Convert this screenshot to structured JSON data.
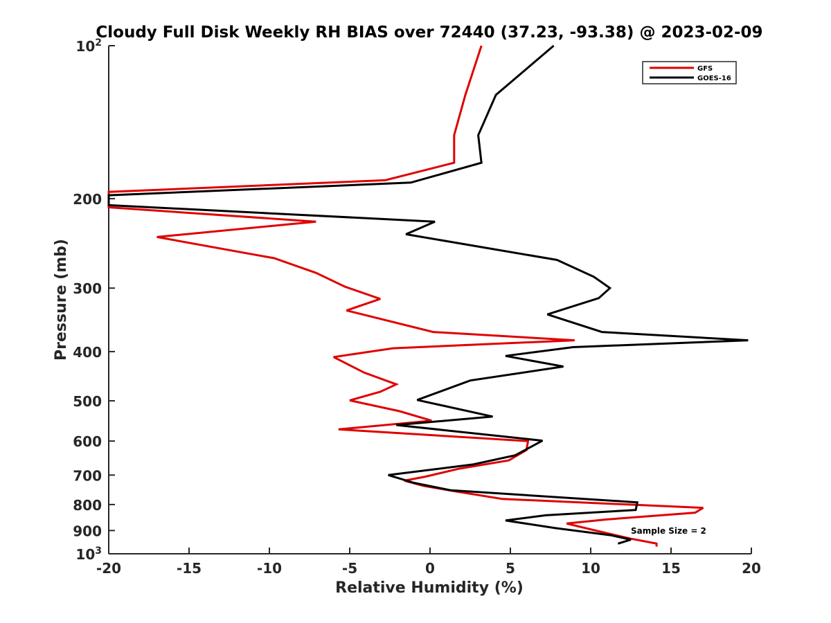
{
  "chart_data": {
    "type": "line",
    "title": "Cloudy Full Disk Weekly RH BIAS over 72440 (37.23, -93.38) @ 2023-02-09",
    "xlabel": "Relative Humidity (%)",
    "ylabel": "Pressure (mb)",
    "xlim": [
      -20,
      20
    ],
    "ylim": [
      100,
      1000
    ],
    "y_scale": "log",
    "y_reversed": true,
    "x_ticks": [
      -20,
      -15,
      -10,
      -5,
      0,
      5,
      10,
      15,
      20
    ],
    "x_tick_labels": [
      "-20",
      "-15",
      "-10",
      "-5",
      "0",
      "5",
      "10",
      "15",
      "20"
    ],
    "y_ticks": [
      100,
      200,
      300,
      400,
      500,
      600,
      700,
      800,
      900,
      1000
    ],
    "y_tick_labels": [
      {
        "base": "10",
        "exp": "2"
      },
      {
        "base": "200",
        "exp": ""
      },
      {
        "base": "300",
        "exp": ""
      },
      {
        "base": "400",
        "exp": ""
      },
      {
        "base": "500",
        "exp": ""
      },
      {
        "base": "600",
        "exp": ""
      },
      {
        "base": "700",
        "exp": ""
      },
      {
        "base": "800",
        "exp": ""
      },
      {
        "base": "900",
        "exp": ""
      },
      {
        "base": "10",
        "exp": "3"
      }
    ],
    "grid": false,
    "legend_position": "top-right",
    "annotation": "Sample Size = 2",
    "series": [
      {
        "name": "GFS",
        "color": "#e00000",
        "points": [
          [
            3.2,
            100
          ],
          [
            2.2,
            125
          ],
          [
            1.5,
            150
          ],
          [
            1.5,
            170
          ],
          [
            -2.8,
            184
          ],
          [
            -20,
            194
          ],
          [
            -20,
            208
          ],
          [
            -7.1,
            222
          ],
          [
            -17,
            238
          ],
          [
            -9.7,
            262
          ],
          [
            -7.1,
            280
          ],
          [
            -5.3,
            298
          ],
          [
            -3.1,
            315
          ],
          [
            -5.2,
            332
          ],
          [
            0.2,
            366
          ],
          [
            9.0,
            380
          ],
          [
            -2.3,
            394
          ],
          [
            -6.0,
            410
          ],
          [
            -4.1,
            440
          ],
          [
            -2.1,
            464
          ],
          [
            -3.1,
            480
          ],
          [
            -5.0,
            499
          ],
          [
            -1.9,
            524
          ],
          [
            0.1,
            547
          ],
          [
            -5.7,
            569
          ],
          [
            6.1,
            600
          ],
          [
            6.0,
            625
          ],
          [
            4.9,
            655
          ],
          [
            1.8,
            680
          ],
          [
            -0.3,
            705
          ],
          [
            -1.6,
            718
          ],
          [
            -0.4,
            735
          ],
          [
            1.4,
            752
          ],
          [
            4.5,
            780
          ],
          [
            17.0,
            812
          ],
          [
            16.5,
            830
          ],
          [
            11.0,
            856
          ],
          [
            8.5,
            872
          ],
          [
            10.5,
            903
          ],
          [
            12.5,
            934
          ],
          [
            14.1,
            955
          ],
          [
            14.1,
            968
          ]
        ]
      },
      {
        "name": "GOES-16",
        "color": "#000000",
        "points": [
          [
            7.7,
            100
          ],
          [
            4.1,
            125
          ],
          [
            3.0,
            150
          ],
          [
            3.2,
            170
          ],
          [
            -1.2,
            186
          ],
          [
            -20,
            197
          ],
          [
            -20,
            206
          ],
          [
            0.3,
            222
          ],
          [
            -1.5,
            235
          ],
          [
            7.9,
            264
          ],
          [
            10.2,
            285
          ],
          [
            11.2,
            300
          ],
          [
            10.5,
            314
          ],
          [
            7.3,
            338
          ],
          [
            10.7,
            366
          ],
          [
            19.8,
            380
          ],
          [
            8.9,
            392
          ],
          [
            4.7,
            408
          ],
          [
            8.3,
            428
          ],
          [
            2.5,
            456
          ],
          [
            -0.8,
            498
          ],
          [
            3.9,
            537
          ],
          [
            -2.1,
            558
          ],
          [
            7.0,
            599
          ],
          [
            5.3,
            640
          ],
          [
            2.7,
            667
          ],
          [
            -2.6,
            700
          ],
          [
            -1.0,
            725
          ],
          [
            1.3,
            750
          ],
          [
            12.9,
            792
          ],
          [
            12.8,
            820
          ],
          [
            7.2,
            840
          ],
          [
            4.7,
            860
          ],
          [
            7.8,
            890
          ],
          [
            11.3,
            920
          ],
          [
            12.5,
            938
          ],
          [
            11.7,
            955
          ]
        ]
      }
    ]
  }
}
